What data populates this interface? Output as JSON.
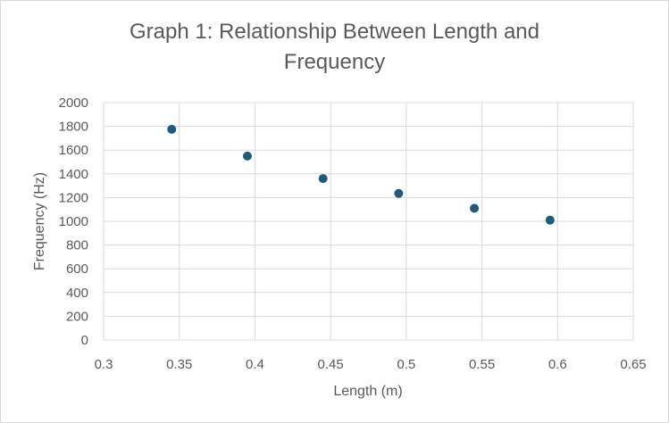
{
  "chart_data": {
    "type": "scatter",
    "title_line1": "Graph 1: Relationship Between Length and",
    "title_line2": "Frequency",
    "xlabel": "Length (m)",
    "ylabel": "Frequency (Hz)",
    "xlim": [
      0.3,
      0.65
    ],
    "ylim": [
      0,
      2000
    ],
    "x_ticks": [
      0.3,
      0.35,
      0.4,
      0.45,
      0.5,
      0.55,
      0.6,
      0.65
    ],
    "x_tick_labels": [
      "0.3",
      "0.35",
      "0.4",
      "0.45",
      "0.5",
      "0.55",
      "0.6",
      "0.65"
    ],
    "y_ticks": [
      0,
      200,
      400,
      600,
      800,
      1000,
      1200,
      1400,
      1600,
      1800,
      2000
    ],
    "y_tick_labels": [
      "0",
      "200",
      "400",
      "600",
      "800",
      "1000",
      "1200",
      "1400",
      "1600",
      "1800",
      "2000"
    ],
    "grid": true,
    "legend": "none",
    "series": [
      {
        "color": "#1f5c7a",
        "points": [
          {
            "x": 0.345,
            "y": 1775
          },
          {
            "x": 0.395,
            "y": 1550
          },
          {
            "x": 0.445,
            "y": 1360
          },
          {
            "x": 0.495,
            "y": 1235
          },
          {
            "x": 0.545,
            "y": 1110
          },
          {
            "x": 0.595,
            "y": 1010
          }
        ]
      }
    ],
    "grid_color": "#d9d9d9"
  }
}
